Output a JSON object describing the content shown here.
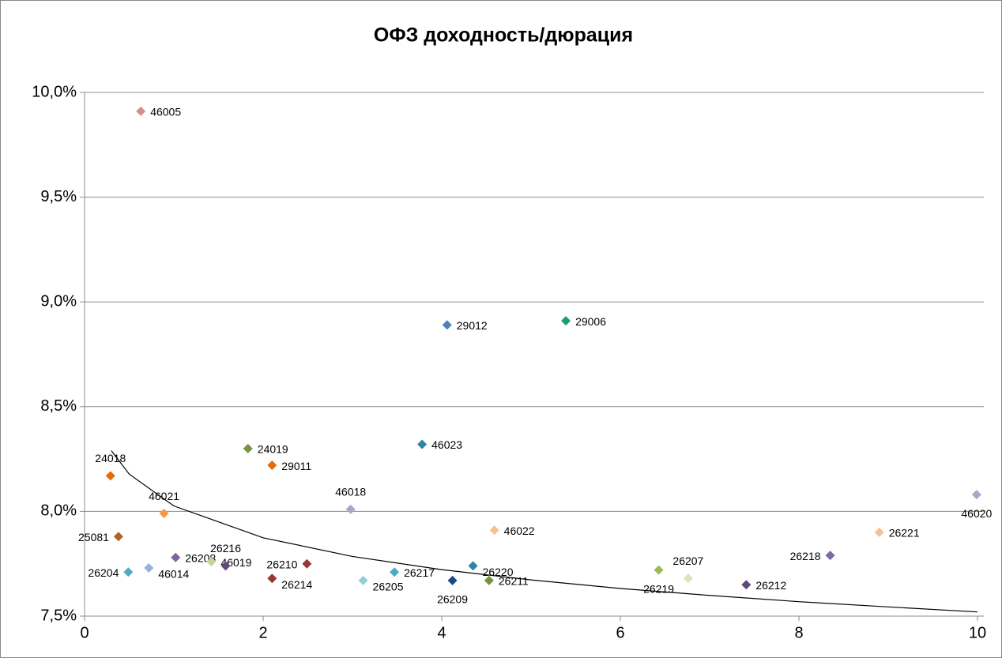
{
  "chart_data": {
    "type": "scatter",
    "title": "ОФЗ доходность/дюрация",
    "x": [
      0.63,
      4.06,
      5.39,
      3.78,
      1.83,
      2.1,
      0.29,
      0.89,
      2.98,
      9.99,
      8.9,
      4.59,
      0.38,
      8.35,
      1.02,
      1.42,
      1.58,
      2.49,
      4.35,
      0.49,
      0.72,
      3.47,
      6.43,
      6.76,
      2.1,
      3.12,
      4.12,
      4.53,
      7.41
    ],
    "values": [
      9.91,
      8.89,
      8.91,
      8.32,
      8.3,
      8.22,
      8.17,
      7.99,
      8.01,
      8.08,
      7.9,
      7.91,
      7.88,
      7.79,
      7.78,
      7.76,
      7.74,
      7.75,
      7.74,
      7.71,
      7.73,
      7.71,
      7.72,
      7.68,
      7.68,
      7.67,
      7.67,
      7.67,
      7.65
    ],
    "point_labels": [
      "46005",
      "29012",
      "29006",
      "46023",
      "24019",
      "29011",
      "24018",
      "46021",
      "46018",
      "46020",
      "26221",
      "46022",
      "25081",
      "26218",
      "26208",
      "46019",
      "26216",
      "26210",
      "26220",
      "26204",
      "46014",
      "26217",
      "26219",
      "26207",
      "26214",
      "26205",
      "26209",
      "26211",
      "26212"
    ],
    "colors": [
      "#d98c8c",
      "#4f81bd",
      "#1f9a7a",
      "#31859c",
      "#77933c",
      "#e46c0a",
      "#e46c0a",
      "#f79646",
      "#b3a2c7",
      "#b3a2c7",
      "#fabf8f",
      "#fabf8f",
      "#b3602a",
      "#7f6aa3",
      "#8064a2",
      "#c3d69b",
      "#604a7b",
      "#953735",
      "#31859c",
      "#4bacc6",
      "#95b3d7",
      "#4bacc6",
      "#9bbb59",
      "#d7e4bd",
      "#953735",
      "#93cddd",
      "#1f497d",
      "#77933c",
      "#604a7b"
    ],
    "trendline": {
      "x": [
        0.3,
        0.5,
        1,
        2,
        3,
        4,
        5,
        6,
        7,
        8,
        9,
        10
      ],
      "values": [
        8.29,
        8.178,
        8.026,
        7.874,
        7.785,
        7.722,
        7.673,
        7.632,
        7.599,
        7.569,
        7.544,
        7.52
      ]
    },
    "xlim": [
      0,
      10
    ],
    "xticks": [
      0,
      2,
      4,
      6,
      8,
      10
    ],
    "ylim": [
      7.5,
      10.0
    ],
    "yticks": [
      {
        "value": 7.5,
        "label": "7,5%"
      },
      {
        "value": 8.0,
        "label": "8,0%"
      },
      {
        "value": 8.5,
        "label": "8,5%"
      },
      {
        "value": 9.0,
        "label": "9,0%"
      },
      {
        "value": 9.5,
        "label": "9,5%"
      },
      {
        "value": 10.0,
        "label": "10,0%"
      }
    ],
    "grid": true
  }
}
